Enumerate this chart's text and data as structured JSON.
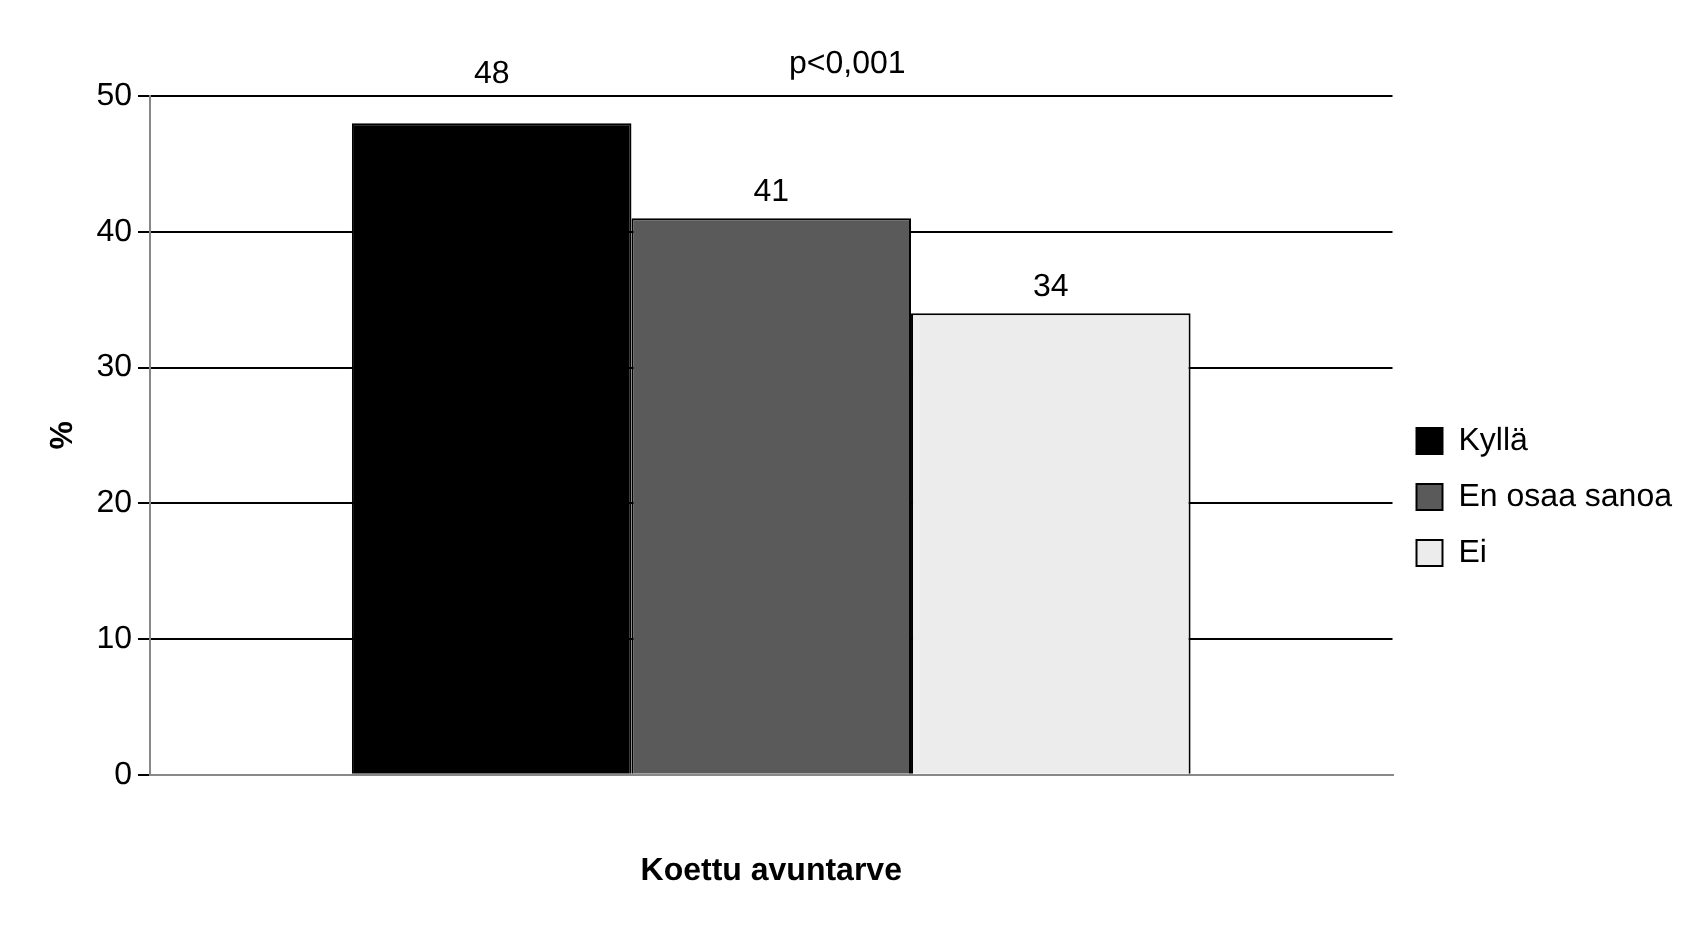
{
  "chart_data": {
    "type": "bar",
    "xlabel": "Koettu avuntarve",
    "ylabel": "%",
    "categories": [
      null
    ],
    "series": [
      {
        "name": "Kyllä",
        "color": "#000000",
        "values": [
          48
        ]
      },
      {
        "name": "En osaa sanoa",
        "color": "#5a5a5a",
        "values": [
          41
        ]
      },
      {
        "name": "Ei",
        "color": "#ececec",
        "values": [
          34
        ]
      }
    ],
    "ylim": [
      0,
      50
    ],
    "yticks": [
      0,
      10,
      20,
      30,
      40,
      50
    ],
    "grid": "y",
    "legend": "right",
    "data_labels": true,
    "annotations": [
      "p<0,001"
    ]
  }
}
